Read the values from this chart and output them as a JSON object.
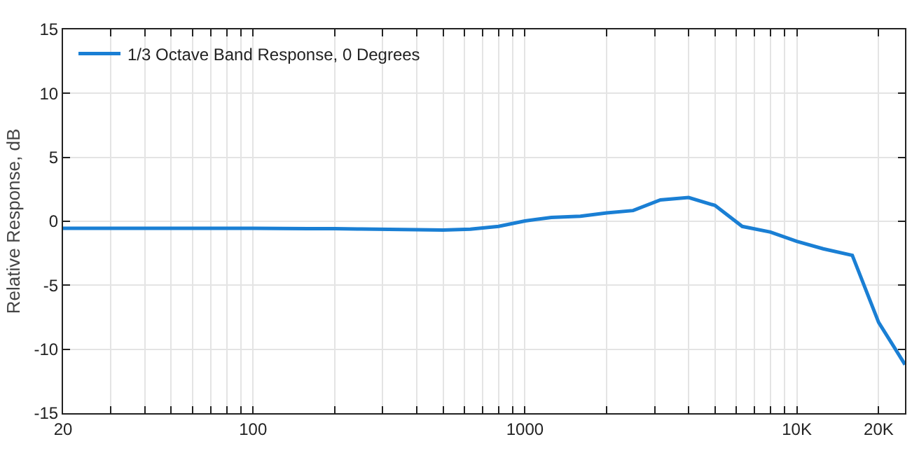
{
  "chart_data": {
    "type": "line",
    "ylabel": "Relative Response, dB",
    "x": [
      20,
      25,
      31.5,
      40,
      50,
      63,
      80,
      100,
      125,
      160,
      200,
      250,
      315,
      400,
      500,
      630,
      800,
      1000,
      1250,
      1600,
      2000,
      2500,
      3150,
      4000,
      5000,
      6300,
      8000,
      10000,
      12500,
      16000,
      20000,
      25000
    ],
    "series": [
      {
        "name": "1/3 Octave Band Response, 0 Degrees",
        "color": "#1a7fd4",
        "values": [
          -0.55,
          -0.55,
          -0.55,
          -0.55,
          -0.55,
          -0.55,
          -0.55,
          -0.55,
          -0.56,
          -0.57,
          -0.58,
          -0.6,
          -0.63,
          -0.66,
          -0.68,
          -0.62,
          -0.4,
          0.03,
          0.3,
          0.4,
          0.66,
          0.84,
          1.67,
          1.86,
          1.24,
          -0.4,
          -0.84,
          -1.57,
          -2.15,
          -2.66,
          -7.9,
          -11.2
        ]
      }
    ],
    "log": "x",
    "xlim": [
      20,
      25000
    ],
    "xticks": [
      20,
      {
        "value": 30,
        "label": null
      },
      {
        "value": 40,
        "label": null
      },
      {
        "value": 50,
        "label": null
      },
      {
        "value": 60,
        "label": null
      },
      {
        "value": 70,
        "label": null
      },
      {
        "value": 80,
        "label": null
      },
      {
        "value": 90,
        "label": null
      },
      100,
      {
        "value": 200,
        "label": null
      },
      {
        "value": 300,
        "label": null
      },
      {
        "value": 400,
        "label": null
      },
      {
        "value": 500,
        "label": null
      },
      {
        "value": 600,
        "label": null
      },
      {
        "value": 700,
        "label": null
      },
      {
        "value": 800,
        "label": null
      },
      {
        "value": 900,
        "label": null
      },
      1000,
      {
        "value": 2000,
        "label": null
      },
      {
        "value": 3000,
        "label": null
      },
      {
        "value": 4000,
        "label": null
      },
      {
        "value": 5000,
        "label": null
      },
      {
        "value": 6000,
        "label": null
      },
      {
        "value": 7000,
        "label": null
      },
      {
        "value": 8000,
        "label": null
      },
      {
        "value": 9000,
        "label": null
      },
      {
        "value": 10000,
        "label": "10K"
      },
      {
        "value": 20000,
        "label": "20K"
      }
    ],
    "ylim": [
      -15,
      15
    ],
    "yticks": [
      -15,
      -10,
      -5,
      0,
      5,
      10,
      15
    ],
    "grid": true,
    "legend": "top left",
    "marker": "none",
    "line_style": "solid"
  }
}
